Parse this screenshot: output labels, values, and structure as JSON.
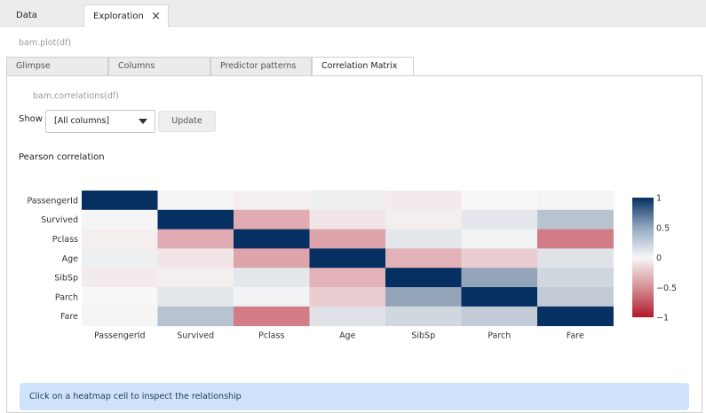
{
  "top_tabs": [
    {
      "label": "Data"
    },
    {
      "label": "Exploration",
      "close": "×"
    }
  ],
  "plot_call": "bam.plot(df)",
  "sub_tabs": [
    {
      "label": "Glimpse"
    },
    {
      "label": "Columns"
    },
    {
      "label": "Predictor patterns"
    },
    {
      "label": "Correlation Matrix"
    }
  ],
  "corr_call": "bam.correlations(df)",
  "controls": {
    "show_label": "Show",
    "select_value": "[All columns]",
    "update_label": "Update"
  },
  "section_title": "Pearson correlation",
  "info_text": "Click on a heatmap cell to inspect the relationship",
  "chart_data": {
    "type": "heatmap",
    "variables": [
      "PassengerId",
      "Survived",
      "Pclass",
      "Age",
      "SibSp",
      "Parch",
      "Fare"
    ],
    "matrix": [
      [
        1.0,
        -0.01,
        -0.04,
        0.04,
        -0.06,
        -0.0,
        0.01
      ],
      [
        -0.01,
        1.0,
        -0.34,
        -0.08,
        -0.04,
        0.08,
        0.26
      ],
      [
        -0.04,
        -0.34,
        1.0,
        -0.37,
        0.08,
        0.02,
        -0.55
      ],
      [
        0.04,
        -0.08,
        -0.37,
        1.0,
        -0.31,
        -0.19,
        0.1
      ],
      [
        -0.06,
        -0.04,
        0.08,
        -0.31,
        1.0,
        0.41,
        0.16
      ],
      [
        -0.0,
        0.08,
        0.02,
        -0.19,
        0.41,
        1.0,
        0.22
      ],
      [
        0.01,
        0.26,
        -0.55,
        0.1,
        0.16,
        0.22,
        1.0
      ]
    ],
    "zrange": [
      -1,
      1
    ],
    "colorbar_ticks": [
      {
        "value": 1,
        "label": "1"
      },
      {
        "value": 0.5,
        "label": "0.5"
      },
      {
        "value": 0,
        "label": "0"
      },
      {
        "value": -0.5,
        "label": "−0.5"
      },
      {
        "value": -1,
        "label": "−1"
      }
    ],
    "colors": {
      "neg": "#b2182b",
      "mid": "#f7f7f7",
      "pos": "#053061"
    }
  }
}
